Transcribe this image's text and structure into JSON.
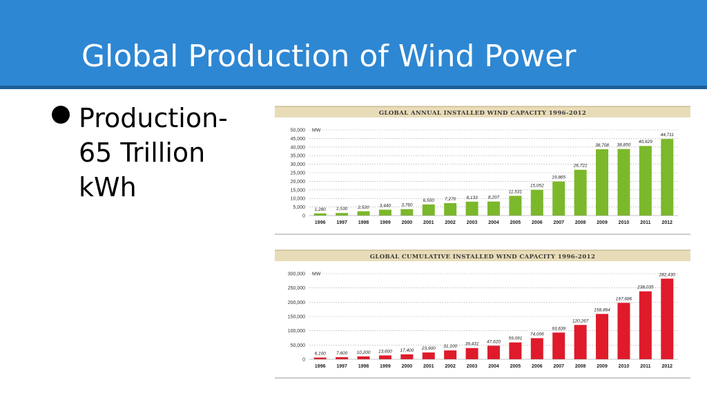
{
  "slide": {
    "title": "Global Production of Wind Power",
    "bullet_text": "Production-\n65 Trillion\nkWh"
  },
  "theme": {
    "title_bar_color": "#2e87d3",
    "title_rule_color": "#1c5f98",
    "annual_bar_color": "#7cb82b",
    "cumulative_bar_color": "#df1a2b",
    "chart_header_color": "#e8dcb8"
  },
  "chart_data": [
    {
      "type": "bar",
      "title": "GLOBAL ANNUAL INSTALLED WIND CAPACITY 1996-2012",
      "ylabel": "MW",
      "ylim": [
        0,
        50000
      ],
      "y_ticks": [
        "0",
        "5,000",
        "10,000",
        "15,000",
        "20,000",
        "25,000",
        "30,000",
        "35,000",
        "40,000",
        "45,000",
        "50,000"
      ],
      "y_tick_values": [
        0,
        5000,
        10000,
        15000,
        20000,
        25000,
        30000,
        35000,
        40000,
        45000,
        50000
      ],
      "grid": true,
      "categories": [
        "1996",
        "1997",
        "1998",
        "1999",
        "2000",
        "2001",
        "2002",
        "2003",
        "2004",
        "2005",
        "2006",
        "2007",
        "2008",
        "2009",
        "2010",
        "2011",
        "2012"
      ],
      "values": [
        1280,
        1530,
        2520,
        3440,
        3760,
        6500,
        7270,
        8133,
        8207,
        11531,
        15052,
        19865,
        26721,
        38708,
        38850,
        40629,
        44711
      ],
      "data_labels": [
        "1,280",
        "1,530",
        "2,520",
        "3,440",
        "3,760",
        "6,500",
        "7,270",
        "8,133",
        "8,207",
        "11,531",
        "15,052",
        "19,865",
        "26,721",
        "38,708",
        "38,850",
        "40,629",
        "44,711"
      ]
    },
    {
      "type": "bar",
      "title": "GLOBAL CUMULATIVE INSTALLED WIND CAPACITY 1996-2012",
      "ylabel": "MW",
      "ylim": [
        0,
        300000
      ],
      "y_ticks": [
        "0",
        "50,000",
        "100,000",
        "150,000",
        "200,000",
        "250,000",
        "300,000"
      ],
      "y_tick_values": [
        0,
        50000,
        100000,
        150000,
        200000,
        250000,
        300000
      ],
      "grid": true,
      "categories": [
        "1996",
        "1997",
        "1998",
        "1999",
        "2000",
        "2001",
        "2002",
        "2003",
        "2004",
        "2005",
        "2006",
        "2007",
        "2008",
        "2009",
        "2010",
        "2011",
        "2012"
      ],
      "values": [
        6100,
        7600,
        10200,
        13600,
        17400,
        23900,
        31100,
        39431,
        47620,
        59091,
        74006,
        93639,
        120267,
        158864,
        197686,
        238035,
        282430
      ],
      "data_labels": [
        "6,100",
        "7,600",
        "10,200",
        "13,600",
        "17,400",
        "23,900",
        "31,100",
        "39,431",
        "47,620",
        "59,091",
        "74,006",
        "93,639",
        "120,267",
        "158,864",
        "197,686",
        "238,035",
        "282,430"
      ]
    }
  ]
}
